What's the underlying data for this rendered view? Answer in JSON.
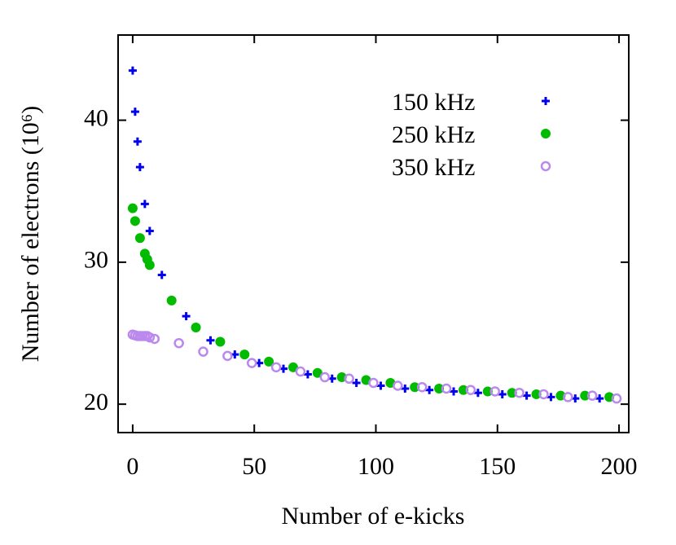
{
  "chart_data": {
    "type": "scatter",
    "xlabel": "Number of e-kicks",
    "ylabel": "Number of electrons (10⁶)",
    "xlim": [
      -6,
      204
    ],
    "xticks": [
      0,
      50,
      100,
      150,
      200
    ],
    "ylim": [
      18,
      46
    ],
    "yticks": [
      20,
      30,
      40
    ],
    "legend": "upper right",
    "series": [
      {
        "name": "150 kHz",
        "color": "#0000ee",
        "marker": "plus",
        "x": [
          0,
          1,
          2,
          3,
          5,
          7,
          12,
          22,
          32,
          42,
          52,
          62,
          72,
          82,
          92,
          102,
          112,
          122,
          132,
          142,
          152,
          162,
          172,
          182,
          192
        ],
        "y": [
          43.5,
          40.6,
          38.5,
          36.7,
          34.1,
          32.2,
          29.1,
          26.2,
          24.5,
          23.5,
          22.9,
          22.5,
          22.1,
          21.8,
          21.5,
          21.3,
          21.1,
          21.0,
          20.9,
          20.8,
          20.7,
          20.6,
          20.5,
          20.4,
          20.4
        ]
      },
      {
        "name": "250 kHz",
        "color": "#00bb00",
        "marker": "circle",
        "x": [
          0,
          1,
          3,
          5,
          6,
          7,
          16,
          26,
          36,
          46,
          56,
          66,
          76,
          86,
          96,
          106,
          116,
          126,
          136,
          146,
          156,
          166,
          176,
          186,
          196
        ],
        "y": [
          33.8,
          32.9,
          31.7,
          30.6,
          30.2,
          29.8,
          27.3,
          25.4,
          24.4,
          23.5,
          23.0,
          22.6,
          22.2,
          21.9,
          21.7,
          21.5,
          21.2,
          21.1,
          21.0,
          20.9,
          20.8,
          20.7,
          20.6,
          20.6,
          20.5
        ]
      },
      {
        "name": "350 kHz",
        "color": "#bb88ee",
        "marker": "open-circle",
        "x": [
          0,
          1,
          2,
          3,
          4,
          5,
          6,
          7,
          9,
          19,
          29,
          39,
          49,
          59,
          69,
          79,
          89,
          99,
          109,
          119,
          129,
          139,
          149,
          159,
          169,
          179,
          189,
          199
        ],
        "y": [
          24.9,
          24.85,
          24.8,
          24.8,
          24.8,
          24.8,
          24.8,
          24.7,
          24.6,
          24.3,
          23.7,
          23.4,
          22.9,
          22.6,
          22.3,
          21.9,
          21.8,
          21.5,
          21.3,
          21.2,
          21.1,
          21.0,
          20.9,
          20.8,
          20.7,
          20.5,
          20.6,
          20.4
        ]
      }
    ]
  }
}
